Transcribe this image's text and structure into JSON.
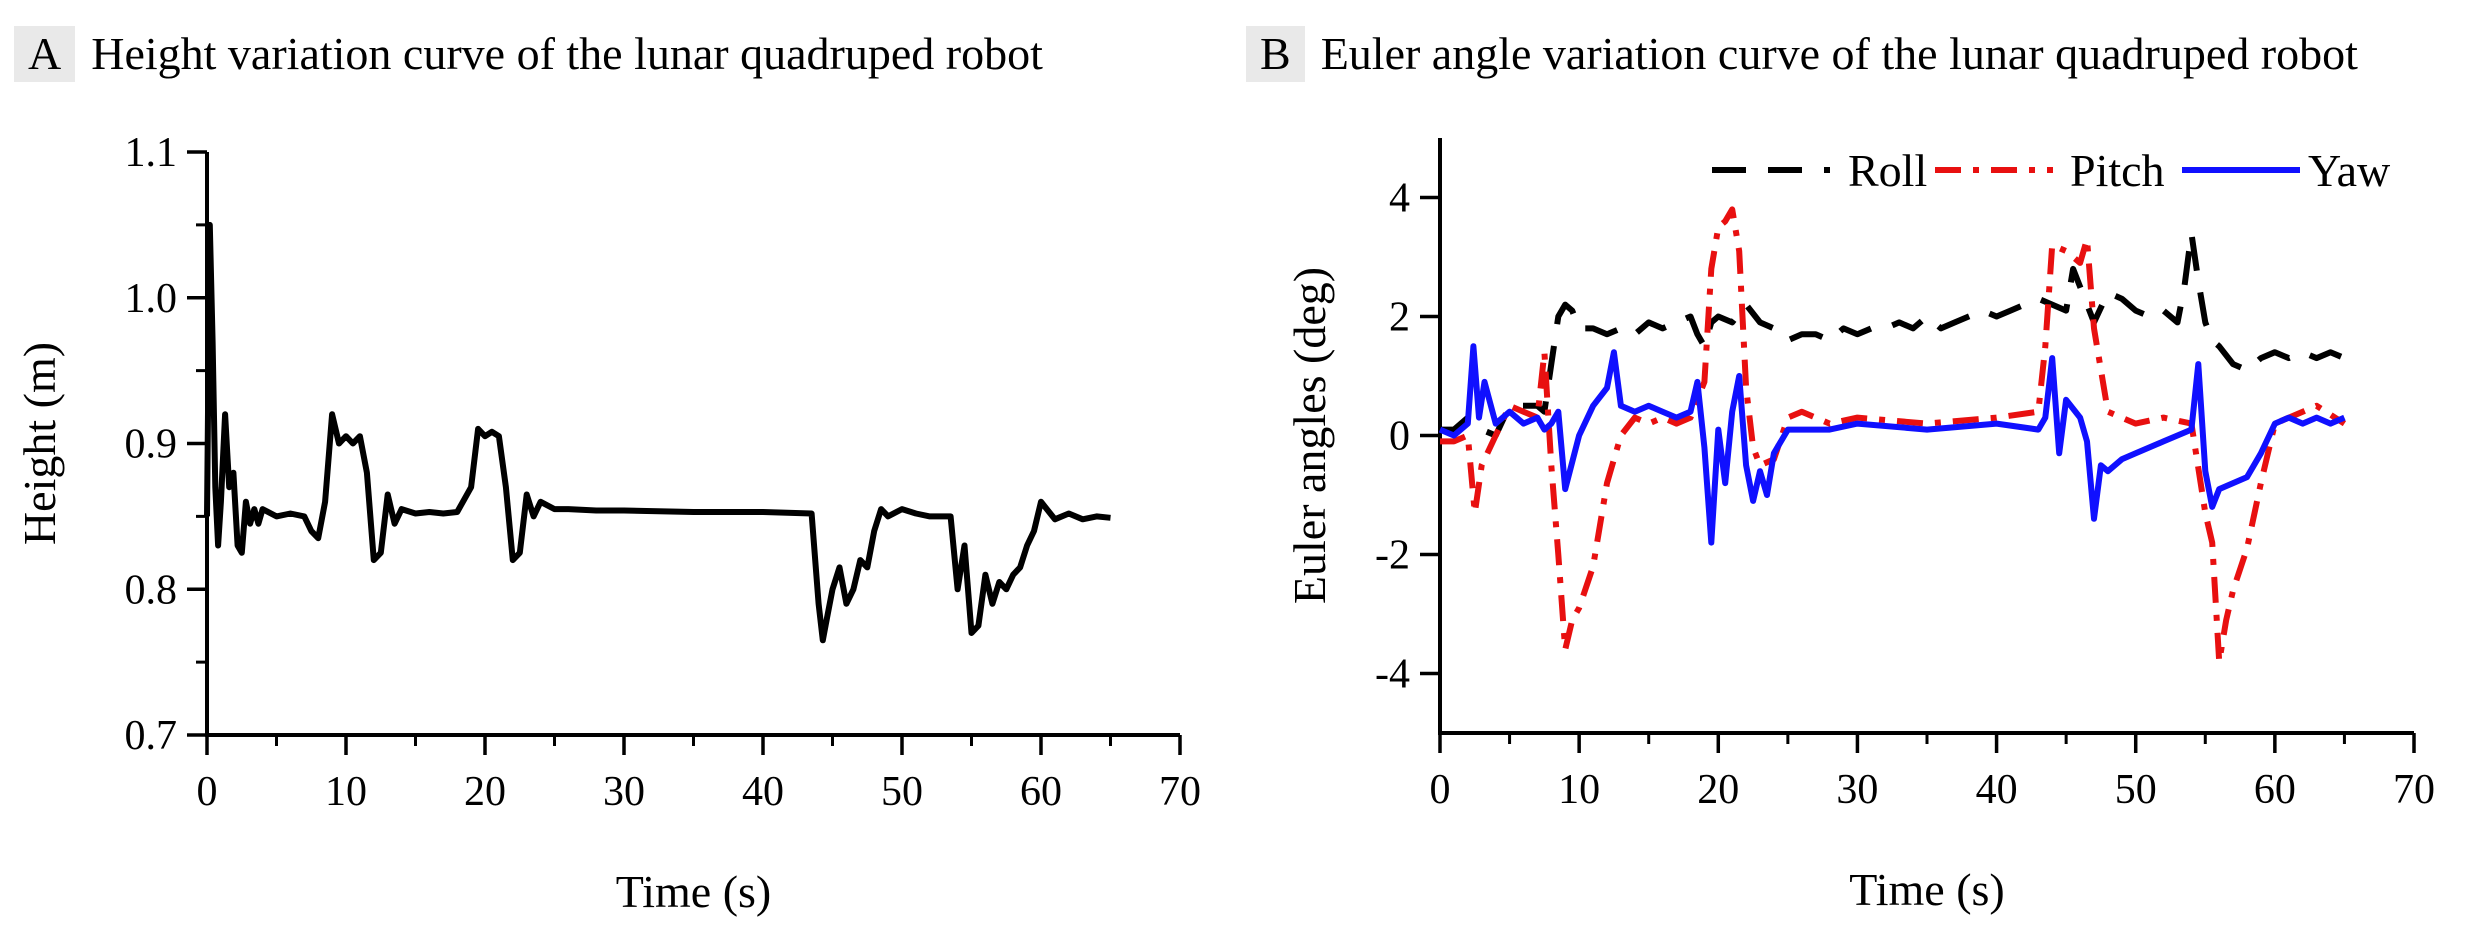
{
  "chart_data": [
    {
      "type": "line",
      "panel": "A",
      "title": "Height variation curve of the lunar quadruped robot",
      "xlabel": "Time (s)",
      "ylabel": "Height (m)",
      "xlim": [
        0,
        70
      ],
      "ylim": [
        0.7,
        1.1
      ],
      "xticks": [
        "0",
        "10",
        "20",
        "30",
        "40",
        "50",
        "60",
        "70"
      ],
      "yticks": [
        "0.7",
        "0.8",
        "0.9",
        "1.0",
        "1.1"
      ],
      "grid": false,
      "series": [
        {
          "color": "#000000",
          "style": "solid",
          "x": [
            0,
            0.2,
            0.4,
            0.6,
            0.8,
            1.0,
            1.3,
            1.6,
            1.9,
            2.2,
            2.5,
            2.8,
            3.1,
            3.4,
            3.7,
            4.0,
            5,
            6,
            7,
            7.5,
            8.0,
            8.5,
            9.0,
            9.5,
            10.0,
            10.5,
            11.0,
            11.5,
            12.0,
            12.5,
            13.0,
            13.5,
            14,
            15,
            16,
            17,
            18,
            19.0,
            19.5,
            20.0,
            20.5,
            21.0,
            21.5,
            22.0,
            22.5,
            23.0,
            23.5,
            24,
            25,
            26,
            28,
            30,
            35,
            40,
            43.5,
            44.0,
            44.3,
            44.6,
            45.0,
            45.5,
            46.0,
            46.5,
            47.0,
            47.5,
            48.0,
            48.5,
            49,
            50,
            51,
            52,
            53,
            53.5,
            54.0,
            54.5,
            55.0,
            55.5,
            56.0,
            56.5,
            57.0,
            57.5,
            58.0,
            58.5,
            59.0,
            59.5,
            60.0,
            61,
            62,
            63,
            64,
            65
          ],
          "y": [
            0.85,
            1.05,
            0.97,
            0.87,
            0.83,
            0.86,
            0.92,
            0.87,
            0.88,
            0.83,
            0.825,
            0.86,
            0.845,
            0.855,
            0.845,
            0.855,
            0.85,
            0.852,
            0.85,
            0.84,
            0.835,
            0.86,
            0.92,
            0.9,
            0.905,
            0.9,
            0.905,
            0.88,
            0.82,
            0.825,
            0.865,
            0.845,
            0.855,
            0.852,
            0.853,
            0.852,
            0.853,
            0.87,
            0.91,
            0.905,
            0.908,
            0.905,
            0.87,
            0.82,
            0.825,
            0.865,
            0.85,
            0.86,
            0.855,
            0.855,
            0.854,
            0.854,
            0.853,
            0.853,
            0.852,
            0.79,
            0.765,
            0.78,
            0.8,
            0.815,
            0.79,
            0.8,
            0.82,
            0.815,
            0.84,
            0.855,
            0.85,
            0.855,
            0.852,
            0.85,
            0.85,
            0.85,
            0.8,
            0.83,
            0.77,
            0.775,
            0.81,
            0.79,
            0.805,
            0.8,
            0.81,
            0.815,
            0.83,
            0.84,
            0.86,
            0.848,
            0.852,
            0.848,
            0.85,
            0.849
          ]
        }
      ]
    },
    {
      "type": "line",
      "panel": "B",
      "title": "Euler angle variation curve of the lunar quadruped robot",
      "xlabel": "Time (s)",
      "ylabel": "Euler angles (deg)",
      "xlim": [
        0,
        70
      ],
      "ylim": [
        -5,
        5
      ],
      "xticks": [
        "0",
        "10",
        "20",
        "30",
        "40",
        "50",
        "60",
        "70"
      ],
      "yticks": [
        "-4",
        "-2",
        "0",
        "2",
        "4"
      ],
      "yticks_values": [
        -4,
        -2,
        0,
        2,
        4
      ],
      "grid": false,
      "legend": "top-right",
      "series": [
        {
          "name": "Roll",
          "color": "#000000",
          "style": "dashed",
          "x": [
            0,
            1,
            2,
            3,
            4,
            5,
            6,
            7,
            7.5,
            8.0,
            8.5,
            9.0,
            9.5,
            10,
            11,
            12,
            13,
            14,
            15,
            16,
            17,
            18,
            18.5,
            19.0,
            19.5,
            20,
            21,
            22,
            23,
            24,
            25,
            26,
            27,
            28,
            29,
            30,
            31,
            32,
            33,
            34,
            35,
            36,
            37,
            38,
            39,
            40,
            41,
            42,
            43,
            44,
            45,
            45.5,
            46,
            47,
            48,
            49,
            50,
            51,
            52,
            53,
            53.5,
            54,
            54.5,
            55,
            55.5,
            56,
            57,
            58,
            59,
            60,
            61,
            62,
            63,
            64,
            65
          ],
          "y": [
            0.1,
            0.1,
            0.3,
            0.1,
            0.0,
            0.5,
            0.5,
            0.5,
            0.4,
            1.2,
            2.0,
            2.2,
            2.1,
            1.8,
            1.8,
            1.7,
            1.8,
            1.7,
            1.9,
            1.8,
            1.9,
            2.0,
            1.7,
            1.5,
            1.9,
            2.0,
            1.9,
            2.2,
            1.9,
            1.8,
            1.6,
            1.7,
            1.7,
            1.6,
            1.8,
            1.7,
            1.8,
            1.8,
            1.9,
            1.8,
            2.0,
            1.8,
            1.9,
            2.0,
            2.1,
            2.0,
            2.1,
            2.2,
            2.3,
            2.2,
            2.1,
            2.8,
            2.5,
            1.9,
            2.4,
            2.3,
            2.1,
            2.0,
            2.1,
            1.9,
            2.5,
            3.4,
            2.6,
            1.9,
            1.6,
            1.5,
            1.2,
            1.1,
            1.3,
            1.4,
            1.3,
            1.4,
            1.3,
            1.4,
            1.3
          ]
        },
        {
          "name": "Pitch",
          "color": "#e81010",
          "style": "dash-dot",
          "x": [
            0,
            1,
            2,
            2.5,
            3,
            4,
            5,
            6,
            7,
            7.5,
            8.0,
            8.5,
            9.0,
            9.5,
            10,
            11,
            12,
            13,
            14,
            15,
            16,
            17,
            18,
            19,
            19.5,
            20,
            20.5,
            21,
            21.5,
            22,
            22.5,
            23,
            24,
            25,
            26,
            28,
            30,
            35,
            40,
            43,
            43.5,
            44,
            45,
            46,
            46.5,
            47,
            48,
            50,
            52,
            54,
            55,
            55.5,
            56,
            56.5,
            57,
            58,
            59,
            60,
            62,
            63,
            65
          ],
          "y": [
            -0.1,
            -0.1,
            0.0,
            -1.3,
            -0.5,
            0.0,
            0.5,
            0.4,
            0.3,
            1.4,
            -0.5,
            -2.0,
            -3.6,
            -3.1,
            -2.9,
            -2.2,
            -0.8,
            0.0,
            0.3,
            0.2,
            0.3,
            0.2,
            0.3,
            0.9,
            2.8,
            3.5,
            3.6,
            3.8,
            3.1,
            0.8,
            -0.2,
            -0.5,
            -0.4,
            0.3,
            0.4,
            0.2,
            0.3,
            0.2,
            0.3,
            0.4,
            1.5,
            3.2,
            3.1,
            2.9,
            3.3,
            1.8,
            0.4,
            0.2,
            0.3,
            0.2,
            -1.3,
            -1.8,
            -3.8,
            -3.1,
            -2.6,
            -1.9,
            -0.8,
            0.2,
            0.4,
            0.5,
            0.2
          ]
        },
        {
          "name": "Yaw",
          "color": "#1010ff",
          "style": "solid",
          "x": [
            0,
            1,
            2,
            2.4,
            2.8,
            3.2,
            4,
            5,
            6,
            7,
            7.5,
            8,
            8.5,
            9,
            10,
            11,
            12,
            12.5,
            13,
            14,
            15,
            16,
            17,
            18,
            18.5,
            19,
            19.5,
            20,
            20.5,
            21,
            21.5,
            22,
            22.5,
            23,
            23.5,
            24,
            25,
            26,
            28,
            30,
            35,
            40,
            43,
            43.5,
            44,
            44.5,
            45,
            46,
            46.5,
            47,
            47.5,
            48,
            49,
            50,
            52,
            54,
            54.5,
            55,
            55.5,
            56,
            57,
            58,
            59,
            60,
            61,
            62,
            63,
            64,
            65
          ],
          "y": [
            0.1,
            0.0,
            0.2,
            1.5,
            0.3,
            0.9,
            0.2,
            0.4,
            0.2,
            0.3,
            0.1,
            0.2,
            0.4,
            -0.9,
            0.0,
            0.5,
            0.8,
            1.4,
            0.5,
            0.4,
            0.5,
            0.4,
            0.3,
            0.4,
            0.9,
            -0.2,
            -1.8,
            0.1,
            -0.8,
            0.4,
            1.0,
            -0.5,
            -1.1,
            -0.6,
            -1.0,
            -0.3,
            0.1,
            0.1,
            0.1,
            0.2,
            0.1,
            0.2,
            0.1,
            0.3,
            1.3,
            -0.3,
            0.6,
            0.3,
            -0.1,
            -1.4,
            -0.5,
            -0.6,
            -0.4,
            -0.3,
            -0.1,
            0.1,
            1.2,
            -0.6,
            -1.2,
            -0.9,
            -0.8,
            -0.7,
            -0.3,
            0.2,
            0.3,
            0.2,
            0.3,
            0.2,
            0.3
          ]
        }
      ]
    }
  ]
}
